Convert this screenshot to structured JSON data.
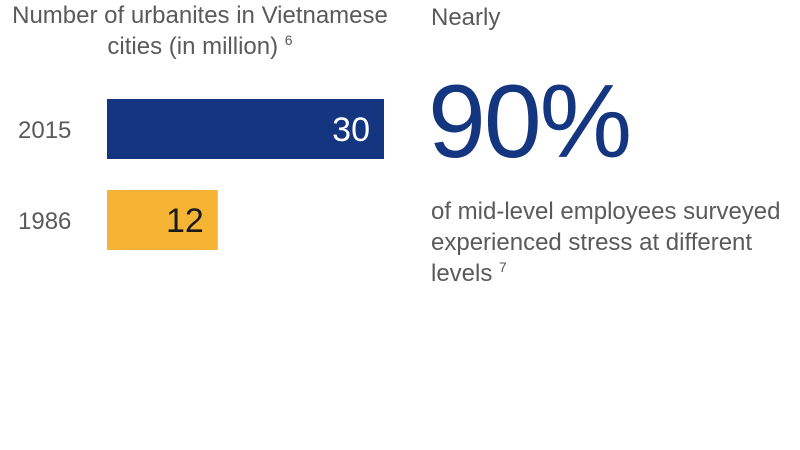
{
  "chart_data": {
    "type": "bar",
    "orientation": "horizontal",
    "title": "Number of urbanites in Vietnamese cities (in million)",
    "title_note": "6",
    "categories": [
      "2015",
      "1986"
    ],
    "values": [
      30,
      12
    ],
    "colors": [
      "#143680",
      "#F6B434"
    ],
    "value_label_colors": [
      "#ffffff",
      "#1a1a1a"
    ],
    "xlim": [
      0,
      30
    ],
    "grid": false,
    "xlabel": "",
    "ylabel": ""
  },
  "stat": {
    "lead": "Nearly",
    "value": "90%",
    "description": "of mid-level employees surveyed experienced stress at different levels",
    "note": "7",
    "color": "#143680"
  },
  "colors": {
    "text": "#5a5a5a",
    "brand_blue": "#143680",
    "accent_yellow": "#F6B434"
  }
}
